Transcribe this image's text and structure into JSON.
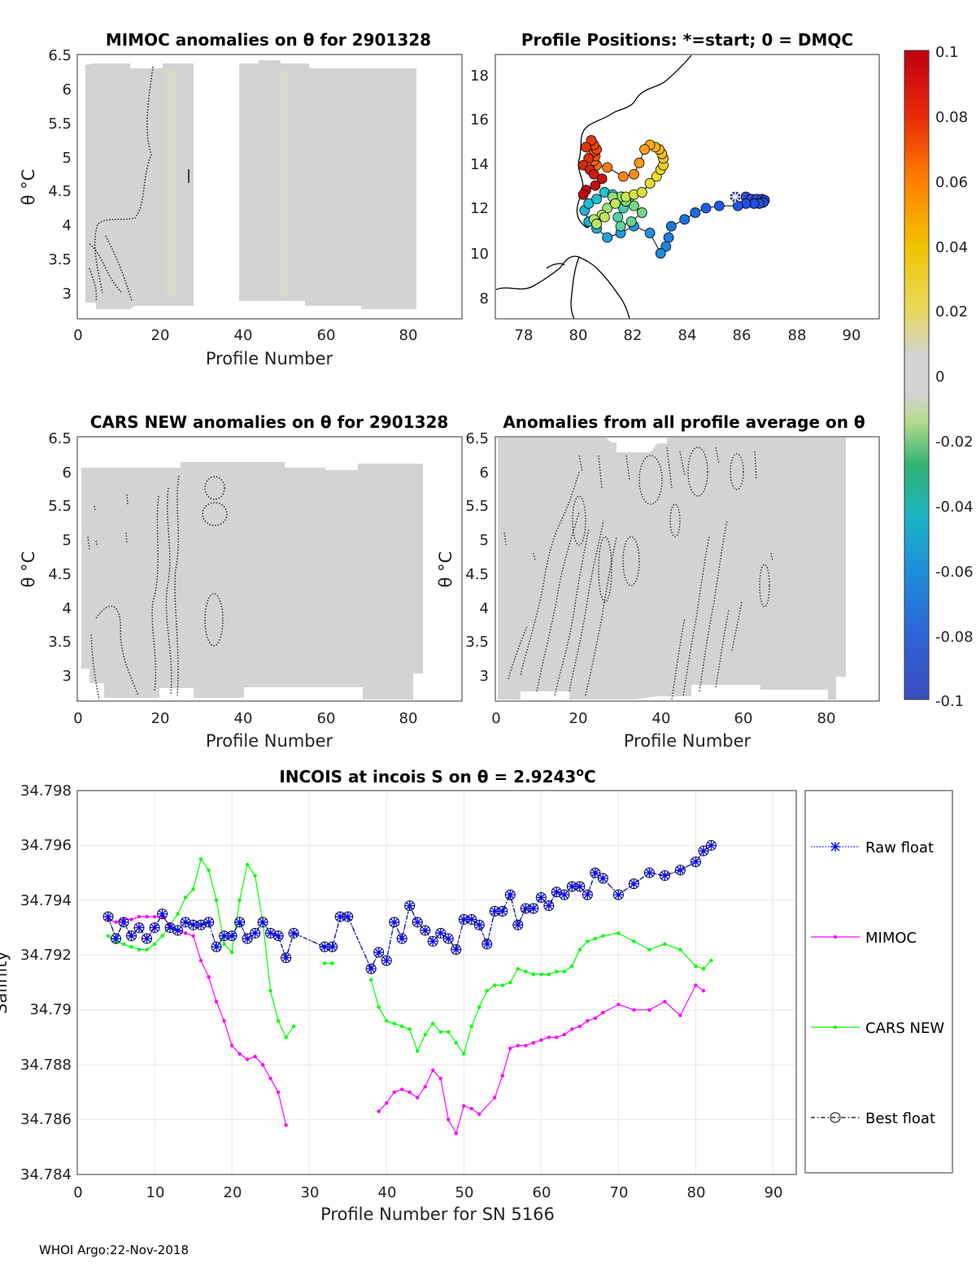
{
  "footer": "WHOI Argo:22-Nov-2018",
  "colors": {
    "raw": "#0000ff",
    "mimoc": "#ff00ff",
    "cars": "#00ff00",
    "best": "#000000",
    "field": "#d3d3d3"
  },
  "colorbar": {
    "ticks": [
      "0.1",
      "0.08",
      "0.06",
      "0.04",
      "0.02",
      "0",
      "-0.02",
      "-0.04",
      "-0.06",
      "-0.08",
      "-0.1"
    ],
    "colormap": "jet-with-grey-center"
  },
  "panels": {
    "mimoc": {
      "title": "MIMOC anomalies on θ  for 2901328",
      "xlabel": "Profile Number",
      "ylabel": "θ °C",
      "xlim": [
        0,
        93
      ],
      "ylim": [
        2.65,
        6.55
      ],
      "xticks": [
        "0",
        "20",
        "40",
        "60",
        "80"
      ],
      "yticks": [
        "3",
        "3.5",
        "4",
        "4.5",
        "5",
        "5.5",
        "6",
        "6.5"
      ]
    },
    "map": {
      "title": "Profile Positions: *=start; 0 = DMQC",
      "xlim": [
        76.8,
        91.2
      ],
      "ylim": [
        7.3,
        19.0
      ],
      "xticks": [
        "78",
        "80",
        "82",
        "84",
        "86",
        "88",
        "90"
      ],
      "yticks": [
        "8",
        "10",
        "12",
        "14",
        "16",
        "18"
      ]
    },
    "cars": {
      "title": "CARS NEW anomalies on θ for 2901328",
      "xlabel": "Profile Number",
      "ylabel": "θ °C",
      "xlim": [
        0,
        93
      ],
      "ylim": [
        2.65,
        6.55
      ],
      "xticks": [
        "0",
        "20",
        "40",
        "60",
        "80"
      ],
      "yticks": [
        "3",
        "3.5",
        "4",
        "4.5",
        "5",
        "5.5",
        "6",
        "6.5"
      ]
    },
    "allprof": {
      "title": "Anomalies from all profile average on θ",
      "xlabel": "Profile Number",
      "ylabel": "θ °C",
      "xlim": [
        0,
        93
      ],
      "ylim": [
        2.65,
        6.55
      ],
      "xticks": [
        "0",
        "20",
        "40",
        "60",
        "80"
      ],
      "yticks": [
        "3",
        "3.5",
        "4",
        "4.5",
        "5",
        "5.5",
        "6",
        "6.5"
      ]
    },
    "incois": {
      "title_main": "INCOIS at incois S on θ = 2.9243",
      "title_sup": "o",
      "title_tail": "C",
      "xlabel": "Profile Number for SN 5166",
      "ylabel": "Salinity",
      "xlim": [
        0,
        93
      ],
      "ylim": [
        34.784,
        34.798
      ],
      "xticks": [
        "0",
        "10",
        "20",
        "30",
        "40",
        "50",
        "60",
        "70",
        "80",
        "90"
      ],
      "yticks": [
        "34.784",
        "34.786",
        "34.788",
        "34.79",
        "34.792",
        "34.794",
        "34.796",
        "34.798"
      ],
      "legend": [
        "Raw float",
        "MIMOC",
        "CARS NEW",
        "Best float"
      ]
    }
  },
  "chart_data": [
    {
      "type": "line",
      "title": "INCOIS at incois S on θ = 2.9243°C",
      "xlabel": "Profile Number for SN 5166",
      "ylabel": "Salinity",
      "xlim": [
        0,
        93
      ],
      "ylim": [
        34.784,
        34.798
      ],
      "grid": true,
      "legend_placement": "right-outside",
      "series": [
        {
          "name": "Raw float",
          "color": "#0000ff",
          "marker": "asterisk",
          "x": [
            4,
            5,
            6,
            7,
            8,
            9,
            10,
            11,
            12,
            13,
            14,
            15,
            16,
            17,
            18,
            19,
            20,
            21,
            22,
            23,
            24,
            25,
            26,
            27,
            28,
            32,
            33,
            34,
            35,
            38,
            39,
            40,
            41,
            42,
            43,
            44,
            45,
            46,
            47,
            48,
            49,
            50,
            51,
            52,
            53,
            54,
            55,
            56,
            57,
            58,
            59,
            60,
            61,
            62,
            63,
            64,
            65,
            66,
            67,
            68,
            70,
            72,
            74,
            76,
            78,
            80,
            81,
            82
          ],
          "y": [
            34.7934,
            34.7926,
            34.7932,
            34.7927,
            34.793,
            34.7926,
            34.793,
            34.7935,
            34.793,
            34.7929,
            34.7932,
            34.7931,
            34.7931,
            34.7932,
            34.7923,
            34.7927,
            34.7927,
            34.7932,
            34.7926,
            34.7928,
            34.7932,
            34.7928,
            34.7927,
            34.7919,
            34.7928,
            34.7923,
            34.7923,
            34.7934,
            34.7934,
            34.7915,
            34.7921,
            34.7918,
            34.7932,
            34.7926,
            34.7938,
            34.7932,
            34.7929,
            34.7925,
            34.7928,
            34.7926,
            34.7922,
            34.7933,
            34.7933,
            34.7931,
            34.7924,
            34.7936,
            34.7936,
            34.7942,
            34.7931,
            34.7937,
            34.7937,
            34.7941,
            34.7938,
            34.7943,
            34.7942,
            34.7945,
            34.7945,
            34.7942,
            34.795,
            34.7948,
            34.7942,
            34.7946,
            34.795,
            34.7949,
            34.7951,
            34.7954,
            34.7958,
            34.796
          ]
        },
        {
          "name": "MIMOC",
          "color": "#ff00ff",
          "marker": "dot",
          "x": [
            4,
            5,
            6,
            7,
            8,
            9,
            10,
            11,
            12,
            13,
            14,
            15,
            16,
            17,
            18,
            19,
            20,
            21,
            22,
            23,
            24,
            25,
            26,
            27,
            39,
            40,
            41,
            42,
            43,
            44,
            45,
            46,
            47,
            48,
            49,
            50,
            51,
            52,
            54,
            55,
            56,
            57,
            58,
            59,
            60,
            61,
            62,
            63,
            64,
            65,
            66,
            67,
            68,
            70,
            72,
            74,
            76,
            78,
            80,
            81
          ],
          "y": [
            34.7933,
            34.7932,
            34.7933,
            34.7933,
            34.7934,
            34.7934,
            34.7934,
            34.7934,
            34.7931,
            34.7929,
            34.7928,
            34.7927,
            34.7918,
            34.7912,
            34.7903,
            34.7896,
            34.7887,
            34.7884,
            34.7882,
            34.7883,
            34.788,
            34.7875,
            34.787,
            34.7858,
            34.7863,
            34.7866,
            34.787,
            34.7871,
            34.787,
            34.7868,
            34.7872,
            34.7878,
            34.7875,
            34.786,
            34.7855,
            34.7865,
            34.7864,
            34.7862,
            34.7868,
            34.7876,
            34.7886,
            34.7887,
            34.7887,
            34.7888,
            34.7889,
            34.789,
            34.789,
            34.7891,
            34.7893,
            34.7894,
            34.7896,
            34.7897,
            34.7899,
            34.7902,
            34.79,
            34.79,
            34.7903,
            34.7898,
            34.7909,
            34.7907
          ]
        },
        {
          "name": "CARS NEW",
          "color": "#00ff00",
          "marker": "dot",
          "x": [
            4,
            5,
            6,
            7,
            8,
            9,
            10,
            11,
            12,
            13,
            14,
            15,
            16,
            17,
            18,
            19,
            20,
            21,
            22,
            23,
            24,
            25,
            26,
            27,
            28,
            32,
            33,
            38,
            39,
            40,
            41,
            42,
            43,
            44,
            45,
            46,
            47,
            48,
            49,
            50,
            51,
            52,
            53,
            54,
            55,
            56,
            57,
            58,
            59,
            60,
            61,
            62,
            63,
            64,
            65,
            66,
            67,
            68,
            70,
            72,
            74,
            76,
            78,
            80,
            81,
            82
          ],
          "y": [
            34.7927,
            34.7925,
            34.7924,
            34.7923,
            34.7922,
            34.7922,
            34.7924,
            34.7927,
            34.7931,
            34.7935,
            34.7941,
            34.7944,
            34.7955,
            34.7951,
            34.794,
            34.7924,
            34.7921,
            34.794,
            34.7953,
            34.7949,
            34.7932,
            34.7907,
            34.7896,
            34.789,
            34.7894,
            34.7917,
            34.7917,
            34.7911,
            34.7901,
            34.7896,
            34.7895,
            34.7894,
            34.7893,
            34.7885,
            34.7891,
            34.7895,
            34.7892,
            34.7892,
            34.7888,
            34.7884,
            34.7894,
            34.7901,
            34.7907,
            34.7909,
            34.7909,
            34.791,
            34.7915,
            34.7914,
            34.7913,
            34.7913,
            34.7913,
            34.7914,
            34.7914,
            34.7916,
            34.7922,
            34.7925,
            34.7926,
            34.7927,
            34.7928,
            34.7925,
            34.7922,
            34.7924,
            34.7922,
            34.7916,
            34.7915,
            34.7918
          ]
        },
        {
          "name": "Best float",
          "color": "#000000",
          "marker": "circle",
          "x": [
            4,
            5,
            6,
            7,
            8,
            9,
            10,
            11,
            12,
            13,
            14,
            15,
            16,
            17,
            18,
            19,
            20,
            21,
            22,
            23,
            24,
            25,
            26,
            27,
            28,
            32,
            33,
            34,
            35,
            38,
            39,
            40,
            41,
            42,
            43,
            44,
            45,
            46,
            47,
            48,
            49,
            50,
            51,
            52,
            53,
            54,
            55,
            56,
            57,
            58,
            59,
            60,
            61,
            62,
            63,
            64,
            65,
            66,
            67,
            68,
            70,
            72,
            74,
            76,
            78,
            80,
            81,
            82
          ],
          "y": [
            34.7934,
            34.7926,
            34.7932,
            34.7927,
            34.793,
            34.7926,
            34.793,
            34.7935,
            34.793,
            34.7929,
            34.7932,
            34.7931,
            34.7931,
            34.7932,
            34.7923,
            34.7927,
            34.7927,
            34.7932,
            34.7926,
            34.7928,
            34.7932,
            34.7928,
            34.7927,
            34.7919,
            34.7928,
            34.7923,
            34.7923,
            34.7934,
            34.7934,
            34.7915,
            34.7921,
            34.7918,
            34.7932,
            34.7926,
            34.7938,
            34.7932,
            34.7929,
            34.7925,
            34.7928,
            34.7926,
            34.7922,
            34.7933,
            34.7933,
            34.7931,
            34.7924,
            34.7936,
            34.7936,
            34.7942,
            34.7931,
            34.7937,
            34.7937,
            34.7941,
            34.7938,
            34.7943,
            34.7942,
            34.7945,
            34.7945,
            34.7942,
            34.795,
            34.7948,
            34.7942,
            34.7946,
            34.795,
            34.7949,
            34.7951,
            34.7954,
            34.7958,
            34.796
          ]
        }
      ]
    },
    {
      "type": "scatter",
      "title": "Profile Positions: *=start; 0 = DMQC",
      "xlim": [
        76.8,
        91.2
      ],
      "ylim": [
        7.3,
        19.0
      ],
      "points_lon": [
        85.8,
        86.2,
        86.4,
        86.6,
        86.8,
        86.9,
        86.85,
        86.7,
        86.5,
        86.2,
        85.9,
        85.2,
        84.7,
        84.3,
        83.9,
        83.4,
        83.3,
        83.2,
        83.0,
        82.6,
        82.0,
        81.5,
        81.0,
        80.6,
        80.3,
        80.15,
        80.3,
        80.6,
        80.9,
        81.2,
        81.55,
        81.8,
        81.6,
        81.4,
        81.5,
        81.9,
        82.3,
        82.0,
        81.7,
        81.5,
        81.2,
        81.0,
        80.8,
        80.5,
        80.6,
        80.9,
        81.3,
        81.7,
        82.0,
        82.3,
        82.6,
        82.85,
        83.0,
        83.1,
        83.1,
        83.05,
        82.95,
        82.8,
        82.6,
        82.4,
        82.2,
        82.0,
        81.6,
        81.0,
        80.6,
        80.5,
        80.55,
        80.5,
        80.6,
        80.5,
        80.4,
        80.2,
        80.3,
        80.1,
        80.35,
        80.5,
        80.8,
        80.55,
        80.2,
        80.1
      ],
      "points_lat": [
        12.7,
        12.7,
        12.6,
        12.6,
        12.6,
        12.55,
        12.45,
        12.4,
        12.4,
        12.4,
        12.3,
        12.3,
        12.2,
        12.0,
        11.7,
        11.4,
        10.9,
        10.5,
        10.2,
        11.1,
        11.4,
        11.1,
        10.9,
        11.3,
        11.6,
        12.1,
        12.4,
        12.6,
        12.9,
        12.8,
        12.7,
        12.6,
        12.2,
        11.8,
        11.4,
        11.6,
        12.0,
        12.3,
        12.5,
        12.7,
        12.7,
        12.2,
        11.9,
        11.7,
        11.5,
        11.8,
        12.4,
        12.7,
        12.8,
        12.9,
        13.3,
        13.6,
        13.9,
        14.1,
        14.4,
        14.6,
        14.8,
        14.9,
        15.0,
        14.8,
        14.2,
        13.7,
        13.6,
        14.0,
        14.1,
        14.3,
        14.5,
        14.7,
        14.8,
        15.0,
        15.2,
        14.9,
        14.4,
        14.1,
        13.9,
        13.7,
        13.5,
        13.2,
        13.0,
        12.8
      ],
      "start_marker": [
        85.8,
        12.7
      ]
    }
  ]
}
